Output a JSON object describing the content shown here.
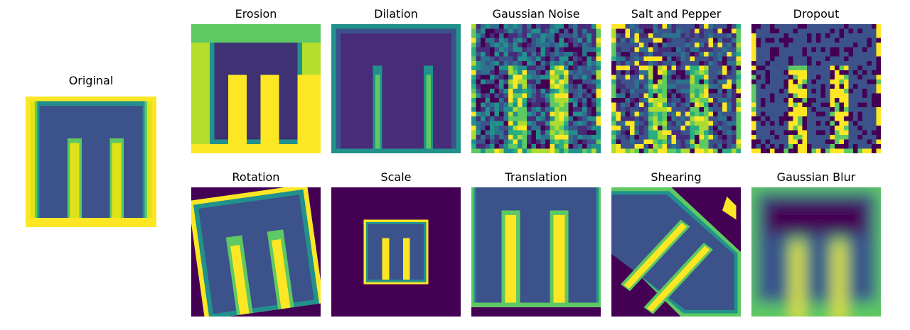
{
  "figure": {
    "original": {
      "title": "Original"
    },
    "panels": [
      {
        "id": "erosion",
        "title": "Erosion"
      },
      {
        "id": "dilation",
        "title": "Dilation"
      },
      {
        "id": "gaussian-noise",
        "title": "Gaussian Noise"
      },
      {
        "id": "salt-and-pepper",
        "title": "Salt and Pepper"
      },
      {
        "id": "dropout",
        "title": "Dropout"
      },
      {
        "id": "rotation",
        "title": "Rotation"
      },
      {
        "id": "scale",
        "title": "Scale"
      },
      {
        "id": "translation",
        "title": "Translation"
      },
      {
        "id": "shearing",
        "title": "Shearing"
      },
      {
        "id": "gaussian-blur",
        "title": "Gaussian Blur"
      }
    ]
  },
  "colors": {
    "background": "#440154",
    "glyph": "#3b528b",
    "edge": "#21918c",
    "mid": "#5ec962",
    "high": "#fde725"
  }
}
